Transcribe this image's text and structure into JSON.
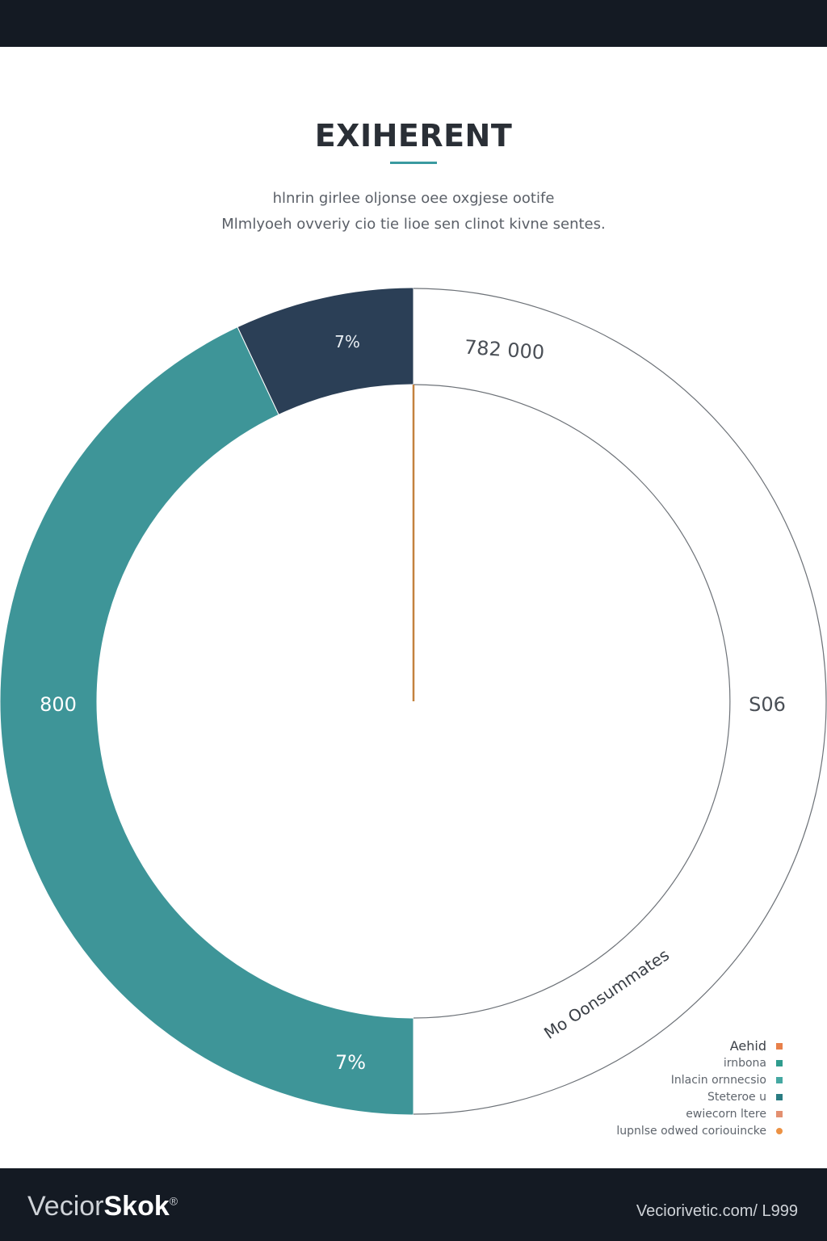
{
  "header": {
    "title": "EXIHERENT",
    "subtitle_lines": [
      "hlnrin girlee oljonse oee oxgjese ootife",
      "Mlmlyoeh ovveriy cio tie lioe sen clinot kivne sentes."
    ]
  },
  "chart_data": {
    "type": "pie",
    "title": "EXIHERENT",
    "style": "donut",
    "slices": [
      {
        "label": "7%",
        "value": 7,
        "color": "#2b3f56"
      },
      {
        "label": "43%",
        "value": 43,
        "color": "#3e9598"
      },
      {
        "label": "50%",
        "value": 50,
        "color": "#ffffff"
      }
    ],
    "data_labels": [
      "7%",
      "782 000",
      "800",
      "S06",
      "7%",
      "Mo Oonsummates"
    ],
    "legend_position": "bottom-right"
  },
  "legend": {
    "items": [
      {
        "label": "Aehid",
        "color": "#e8804a"
      },
      {
        "label": "irnbona",
        "color": "#2f9c8e"
      },
      {
        "label": "Inlacin ornnecsio",
        "color": "#45a8a2"
      },
      {
        "label": "Steteroe u",
        "color": "#2a7c82"
      },
      {
        "label": "ewiecorn ltere",
        "color": "#e39070"
      },
      {
        "label": "lupnlse odwed coriouincke",
        "color": "#ec9244"
      }
    ]
  },
  "footer": {
    "brand_light": "Vecior",
    "brand_bold": "Skok",
    "brand_mark": "®",
    "url": "Veciorivetic.com/ L999"
  }
}
